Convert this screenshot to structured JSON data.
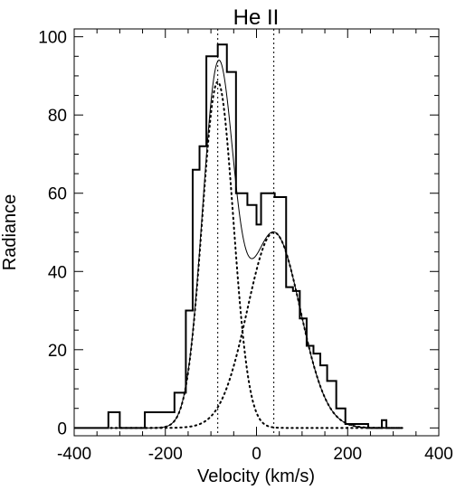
{
  "chart_data": {
    "type": "line",
    "title": "He II",
    "xlabel": "Velocity (km/s)",
    "ylabel": "Radiance",
    "xlim": [
      -400,
      400
    ],
    "ylim": [
      -2,
      102
    ],
    "xticks": [
      -400,
      -200,
      0,
      200,
      400
    ],
    "yticks": [
      0,
      20,
      40,
      60,
      80,
      100
    ],
    "xtick_labels": [
      "-400",
      "-200",
      "0",
      "200",
      "400"
    ],
    "ytick_labels": [
      "0",
      "20",
      "40",
      "60",
      "80",
      "100"
    ],
    "grid": false,
    "legend": "none",
    "series": [
      {
        "style": "histogram",
        "bin_edges": [
          -400,
          -325,
          -300,
          -245,
          -180,
          -155,
          -140,
          -125,
          -110,
          -100,
          -85,
          -80,
          -65,
          -45,
          -20,
          0,
          10,
          25,
          40,
          65,
          80,
          95,
          110,
          125,
          140,
          155,
          175,
          195,
          220,
          245,
          265,
          275,
          285,
          300,
          320
        ],
        "values": [
          0,
          4,
          0,
          4,
          9,
          30,
          66,
          72,
          95,
          95,
          98,
          98,
          91,
          60,
          57,
          52,
          60,
          60,
          59,
          36,
          35,
          28,
          21,
          19,
          16,
          12,
          5,
          1,
          1,
          0,
          0,
          2,
          0,
          0
        ]
      },
      {
        "name": "gaussian-1",
        "style": "dotted",
        "amplitude": 88.5,
        "center": -85,
        "sigma": 34
      },
      {
        "name": "gaussian-2",
        "style": "dotted",
        "amplitude": 50,
        "center": 38,
        "sigma": 58
      },
      {
        "name": "total-fit",
        "style": "solid-thin",
        "components": [
          "gaussian-1",
          "gaussian-2"
        ]
      }
    ],
    "vlines": [
      {
        "x": -85,
        "style": "dotted"
      },
      {
        "x": 38,
        "style": "dotted"
      }
    ]
  }
}
